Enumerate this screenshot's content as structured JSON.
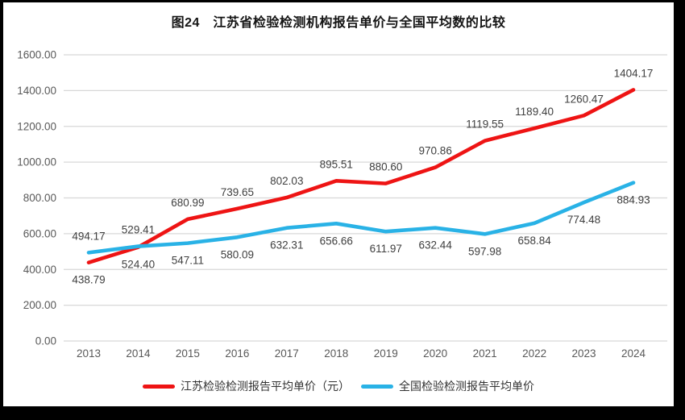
{
  "window": {
    "outer_background": "#000000",
    "page_background": "#ffffff"
  },
  "title": "图24　江苏省检验检测机构报告单价与全国平均数的比较",
  "chart_data": {
    "type": "line",
    "title": "图24　江苏省检验检测机构报告单价与全国平均数的比较",
    "xlabel": "",
    "ylabel": "",
    "categories": [
      "2013",
      "2014",
      "2015",
      "2016",
      "2017",
      "2018",
      "2019",
      "2020",
      "2021",
      "2022",
      "2023",
      "2024"
    ],
    "series": [
      {
        "name": "江苏检验检测报告平均单价（元）",
        "color": "#ee1414",
        "values": [
          438.79,
          524.4,
          680.99,
          739.65,
          802.03,
          895.51,
          880.6,
          970.86,
          1119.55,
          1189.4,
          1260.47,
          1404.17
        ],
        "labels": [
          "438.79",
          "524.40",
          "680.99",
          "739.65",
          "802.03",
          "895.51",
          "880.60",
          "970.86",
          "1119.55",
          "1189.40",
          "1260.47",
          "1404.17"
        ],
        "label_positions": [
          "below",
          "below",
          "above",
          "above",
          "above",
          "above",
          "above",
          "above",
          "above",
          "above",
          "above",
          "above"
        ]
      },
      {
        "name": "全国检验检测报告平均单价",
        "color": "#29b2e6",
        "values": [
          494.17,
          529.41,
          547.11,
          580.09,
          632.31,
          656.66,
          611.97,
          632.44,
          597.98,
          658.84,
          774.48,
          884.93
        ],
        "labels": [
          "494.17",
          "529.41",
          "547.11",
          "580.09",
          "632.31",
          "656.66",
          "611.97",
          "632.44",
          "597.98",
          "658.84",
          "774.48",
          "884.93"
        ],
        "label_positions": [
          "above",
          "above",
          "below",
          "below",
          "below",
          "below",
          "below",
          "below",
          "below",
          "below",
          "below",
          "below"
        ]
      }
    ],
    "ylim": [
      0,
      1600
    ],
    "ytick_interval": 200,
    "ytick_labels": [
      "0.00",
      "200.00",
      "400.00",
      "600.00",
      "800.00",
      "1000.00",
      "1200.00",
      "1400.00",
      "1600.00"
    ],
    "grid": "horizontal",
    "gridline_color": "#d8d8d8",
    "axis_label_color": "#595959",
    "data_label_color": "#3f3f3f",
    "legend_position": "bottom"
  }
}
